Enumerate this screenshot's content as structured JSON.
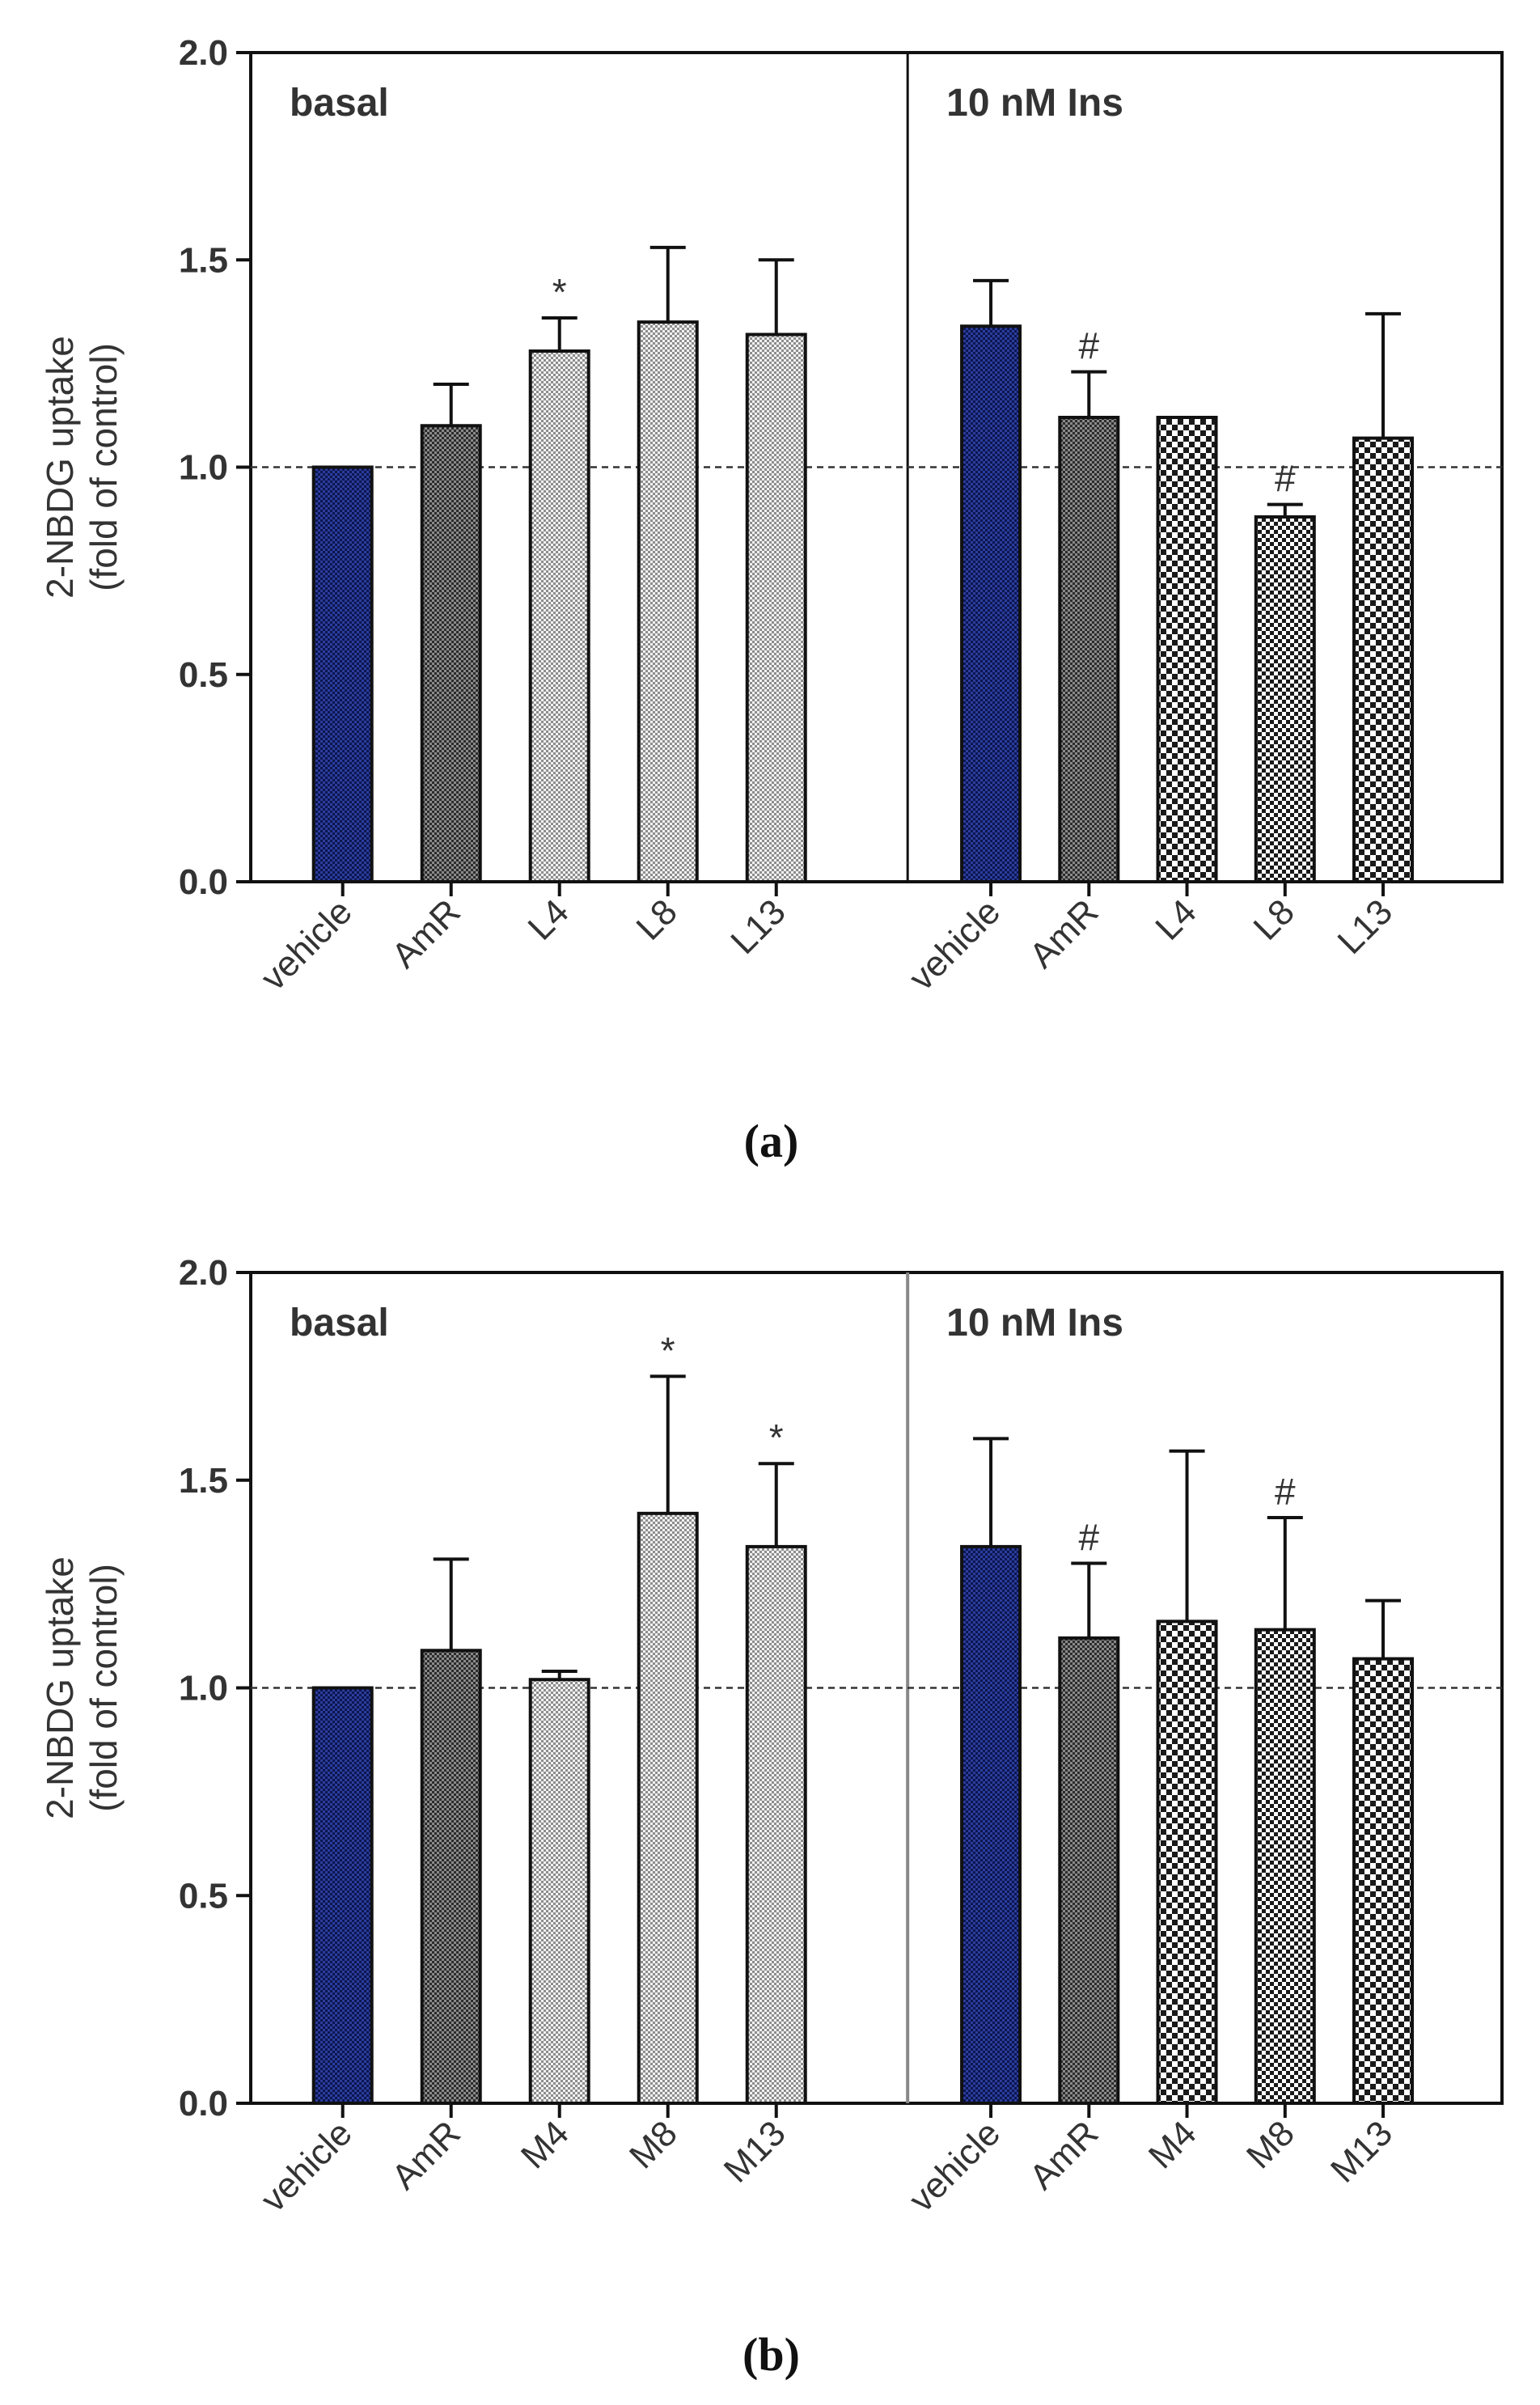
{
  "colors": {
    "vehicle": "#1c2a7a",
    "amr": "#555555",
    "light_grey": "#b9b9b9",
    "checker_light": "#ffffff",
    "checker_dark": "#1a1a1a",
    "axis": "#111111",
    "error_bar": "#111111",
    "reference_line": "#333333"
  },
  "chart_data": [
    {
      "type": "bar",
      "panel_label": "(a)",
      "ylabel": "2-NBDG uptake\n(fold of control)",
      "ylim": [
        0,
        2.0
      ],
      "yticks": [
        "0.0",
        "0.5",
        "1.0",
        "1.5",
        "2.0"
      ],
      "ytick_values": [
        0,
        0.5,
        1.0,
        1.5,
        2.0
      ],
      "reference_line": 1.0,
      "groups": [
        {
          "label": "basal",
          "categories": [
            "vehicle",
            "AmR",
            "L4",
            "L8",
            "L13"
          ],
          "values": [
            1.0,
            1.1,
            1.28,
            1.35,
            1.32
          ],
          "errors": [
            0.0,
            0.1,
            0.08,
            0.18,
            0.18
          ],
          "annotations": [
            "",
            "",
            "*",
            "",
            ""
          ]
        },
        {
          "label": "10 nM Ins",
          "categories": [
            "vehicle",
            "AmR",
            "L4",
            "L8",
            "L13"
          ],
          "values": [
            1.34,
            1.12,
            1.12,
            0.88,
            1.07
          ],
          "errors": [
            0.11,
            0.11,
            0.0,
            0.03,
            0.3
          ],
          "annotations": [
            "",
            "#",
            "",
            "#",
            ""
          ]
        }
      ]
    },
    {
      "type": "bar",
      "panel_label": "(b)",
      "ylabel": "2-NBDG uptake\n(fold of control)",
      "ylim": [
        0,
        2.0
      ],
      "yticks": [
        "0.0",
        "0.5",
        "1.0",
        "1.5",
        "2.0"
      ],
      "ytick_values": [
        0,
        0.5,
        1.0,
        1.5,
        2.0
      ],
      "reference_line": 1.0,
      "groups": [
        {
          "label": "basal",
          "categories": [
            "vehicle",
            "AmR",
            "M4",
            "M8",
            "M13"
          ],
          "values": [
            1.0,
            1.09,
            1.02,
            1.42,
            1.34
          ],
          "errors": [
            0.0,
            0.22,
            0.02,
            0.33,
            0.2
          ],
          "annotations": [
            "",
            "",
            "",
            "*",
            "*"
          ]
        },
        {
          "label": "10 nM Ins",
          "categories": [
            "vehicle",
            "AmR",
            "M4",
            "M8",
            "M13"
          ],
          "values": [
            1.34,
            1.12,
            1.16,
            1.14,
            1.07
          ],
          "errors": [
            0.26,
            0.18,
            0.41,
            0.27,
            0.14
          ],
          "annotations": [
            "",
            "#",
            "",
            "#",
            ""
          ]
        }
      ]
    }
  ]
}
